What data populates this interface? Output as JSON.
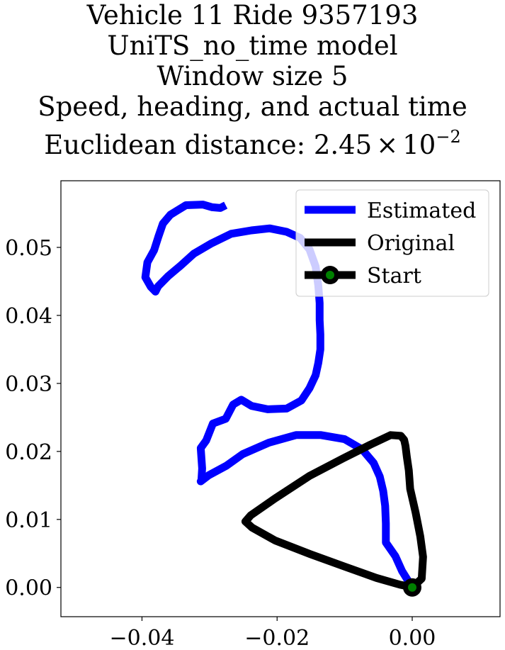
{
  "chart_data": {
    "type": "line",
    "title_lines": [
      "Vehicle 11 Ride 9357193",
      "UniTS_no_time model",
      "Window size 5",
      "Speed, heading, and actual time"
    ],
    "title_metric_prefix": "Euclidean distance: ",
    "title_metric_mantissa": "2.45",
    "title_metric_times": "×",
    "title_metric_base": "10",
    "title_metric_exponent": "−2",
    "xlim": [
      -0.052,
      0.013
    ],
    "ylim": [
      -0.0043,
      0.0598
    ],
    "x_ticks": [
      -0.04,
      -0.02,
      0.0
    ],
    "x_tick_labels": [
      "−0.04",
      "−0.02",
      "0.00"
    ],
    "y_ticks": [
      0.0,
      0.01,
      0.02,
      0.03,
      0.04,
      0.05
    ],
    "y_tick_labels": [
      "0.00",
      "0.01",
      "0.02",
      "0.03",
      "0.04",
      "0.05"
    ],
    "grid": false,
    "legend_position": "top-right",
    "series": [
      {
        "name": "Estimated",
        "color": "#0000ff",
        "x": [
          0.0,
          -0.0015,
          -0.0025,
          -0.0039,
          -0.0039,
          -0.004,
          -0.0043,
          -0.0048,
          -0.0057,
          -0.0074,
          -0.01,
          -0.0135,
          -0.0172,
          -0.0212,
          -0.0251,
          -0.0275,
          -0.0301,
          -0.0313,
          -0.0312,
          -0.0311,
          -0.0313,
          -0.0305,
          -0.0295,
          -0.0276,
          -0.0265,
          -0.0253,
          -0.0238,
          -0.0214,
          -0.0186,
          -0.0164,
          -0.0152,
          -0.0143,
          -0.0139,
          -0.0136,
          -0.0136,
          -0.0137,
          -0.0137,
          -0.0139,
          -0.0143,
          -0.0152,
          -0.0166,
          -0.0186,
          -0.0211,
          -0.0238,
          -0.0268,
          -0.0297,
          -0.0323,
          -0.0343,
          -0.0361,
          -0.0376,
          -0.038,
          -0.0387,
          -0.0395,
          -0.0392,
          -0.0382,
          -0.0376,
          -0.0369,
          -0.0358,
          -0.0335,
          -0.031,
          -0.0296,
          -0.0284,
          -0.0276
        ],
        "y": [
          0.0,
          0.0024,
          0.0046,
          0.0066,
          0.0094,
          0.012,
          0.0142,
          0.0163,
          0.0183,
          0.0203,
          0.0218,
          0.0224,
          0.0224,
          0.0213,
          0.0196,
          0.0179,
          0.0165,
          0.0156,
          0.0158,
          0.0175,
          0.0205,
          0.0216,
          0.0241,
          0.0248,
          0.0269,
          0.0276,
          0.0267,
          0.0262,
          0.0263,
          0.0275,
          0.0293,
          0.0312,
          0.033,
          0.035,
          0.0372,
          0.0393,
          0.0418,
          0.0444,
          0.0472,
          0.0497,
          0.0514,
          0.0523,
          0.0528,
          0.0525,
          0.052,
          0.0506,
          0.0491,
          0.0473,
          0.0458,
          0.0443,
          0.0435,
          0.0442,
          0.0456,
          0.0478,
          0.0496,
          0.0515,
          0.0535,
          0.0548,
          0.0562,
          0.0563,
          0.0559,
          0.0558,
          0.0562
        ]
      },
      {
        "name": "Original",
        "color": "#000000",
        "x": [
          0.0,
          0.0014,
          0.0016,
          0.0012,
          0.0005,
          -0.0003,
          -0.0005,
          -0.0008,
          -0.001,
          -0.0012,
          -0.0017,
          -0.0032,
          -0.0062,
          -0.0102,
          -0.0152,
          -0.0203,
          -0.0239,
          -0.0247,
          -0.0237,
          -0.0203,
          -0.0151,
          -0.0101,
          -0.0053,
          -0.0018,
          0.0002
        ],
        "y": [
          0.0,
          0.0013,
          0.0045,
          0.0075,
          0.011,
          0.0145,
          0.0172,
          0.0192,
          0.0208,
          0.0217,
          0.0223,
          0.0224,
          0.021,
          0.019,
          0.0164,
          0.0131,
          0.0106,
          0.0097,
          0.0088,
          0.0069,
          0.0049,
          0.0031,
          0.0014,
          0.0004,
          0.0
        ]
      }
    ],
    "start_point": {
      "name": "Start",
      "x": 0.0,
      "y": 0.0,
      "marker_color": "#008000",
      "edge_color": "#000000"
    }
  }
}
